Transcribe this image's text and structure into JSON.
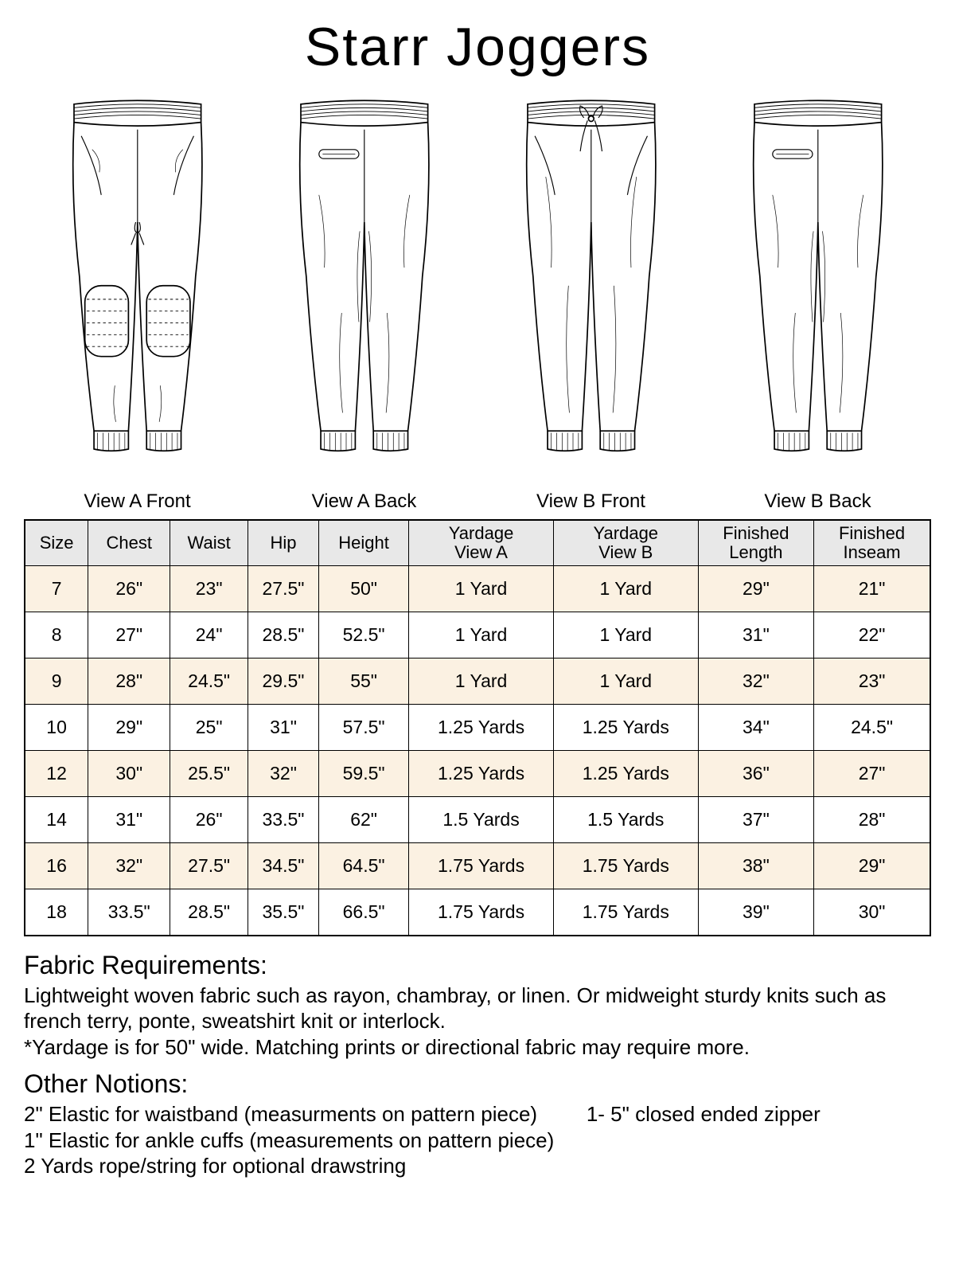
{
  "title": "Starr Joggers",
  "views": [
    {
      "label": "View A Front"
    },
    {
      "label": "View A Back"
    },
    {
      "label": "View B Front"
    },
    {
      "label": "View B Back"
    }
  ],
  "table": {
    "columns": [
      "Size",
      "Chest",
      "Waist",
      "Hip",
      "Height",
      "Yardage\nView A",
      "Yardage\nView B",
      "Finished\nLength",
      "Finished\nInseam"
    ],
    "rows": [
      {
        "shaded": true,
        "cells": [
          "7",
          "26\"",
          "23\"",
          "27.5\"",
          "50\"",
          "1 Yard",
          "1 Yard",
          "29\"",
          "21\""
        ]
      },
      {
        "shaded": false,
        "cells": [
          "8",
          "27\"",
          "24\"",
          "28.5\"",
          "52.5\"",
          "1 Yard",
          "1 Yard",
          "31\"",
          "22\""
        ]
      },
      {
        "shaded": true,
        "cells": [
          "9",
          "28\"",
          "24.5\"",
          "29.5\"",
          "55\"",
          "1 Yard",
          "1 Yard",
          "32\"",
          "23\""
        ]
      },
      {
        "shaded": false,
        "cells": [
          "10",
          "29\"",
          "25\"",
          "31\"",
          "57.5\"",
          "1.25 Yards",
          "1.25 Yards",
          "34\"",
          "24.5\""
        ]
      },
      {
        "shaded": true,
        "cells": [
          "12",
          "30\"",
          "25.5\"",
          "32\"",
          "59.5\"",
          "1.25 Yards",
          "1.25 Yards",
          "36\"",
          "27\""
        ]
      },
      {
        "shaded": false,
        "cells": [
          "14",
          "31\"",
          "26\"",
          "33.5\"",
          "62\"",
          "1.5 Yards",
          "1.5 Yards",
          "37\"",
          "28\""
        ]
      },
      {
        "shaded": true,
        "cells": [
          "16",
          "32\"",
          "27.5\"",
          "34.5\"",
          "64.5\"",
          "1.75 Yards",
          "1.75 Yards",
          "38\"",
          "29\""
        ]
      },
      {
        "shaded": false,
        "cells": [
          "18",
          "33.5\"",
          "28.5\"",
          "35.5\"",
          "66.5\"",
          "1.75 Yards",
          "1.75 Yards",
          "39\"",
          "30\""
        ]
      }
    ],
    "header_bg": "#e8e8e8",
    "shaded_bg": "#fbf1e2",
    "border_color": "#000000"
  },
  "fabric": {
    "title": "Fabric Requirements:",
    "line1": "Lightweight woven fabric such as rayon, chambray, or linen. Or midweight sturdy knits such as french terry, ponte, sweatshirt knit or interlock.",
    "line2": "*Yardage is for 50\" wide. Matching prints or directional fabric may require more."
  },
  "notions": {
    "title": "Other Notions:",
    "items_left": [
      "2\" Elastic for waistband (measurments on pattern piece)",
      "1\" Elastic for ankle cuffs (measurements on pattern piece)",
      "2 Yards rope/string for optional drawstring"
    ],
    "items_right": [
      "1- 5\" closed ended zipper"
    ]
  },
  "colors": {
    "line": "#000000",
    "background": "#ffffff"
  }
}
